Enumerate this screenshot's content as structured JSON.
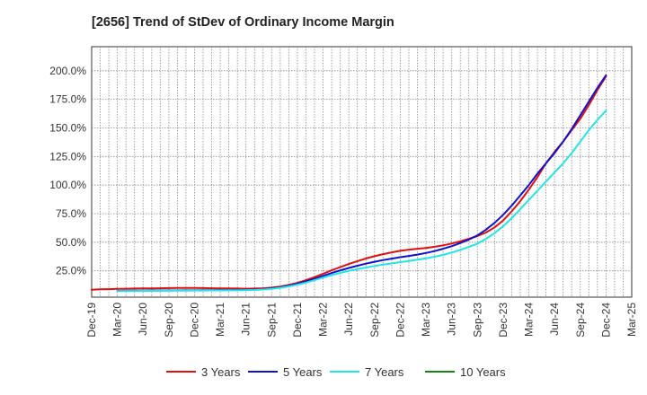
{
  "chart_data": {
    "type": "line",
    "title": "[2656]  Trend of StDev of Ordinary Income Margin",
    "xlabel": "",
    "ylabel": "",
    "x_tick_labels": [
      "Dec-19",
      "Mar-20",
      "Jun-20",
      "Sep-20",
      "Dec-20",
      "Mar-21",
      "Jun-21",
      "Sep-21",
      "Dec-21",
      "Mar-22",
      "Jun-22",
      "Sep-22",
      "Dec-22",
      "Mar-23",
      "Jun-23",
      "Sep-23",
      "Dec-23",
      "Mar-24",
      "Jun-24",
      "Sep-24",
      "Dec-24",
      "Mar-25"
    ],
    "y_ticks": [
      25,
      50,
      75,
      100,
      125,
      150,
      175,
      200
    ],
    "y_tick_labels": [
      "25.0%",
      "50.0%",
      "75.0%",
      "100.0%",
      "125.0%",
      "150.0%",
      "175.0%",
      "200.0%"
    ],
    "ylim": [
      2,
      221
    ],
    "grid": true,
    "legend_position": "bottom",
    "series": [
      {
        "name": "3 Years",
        "color": "#dd1111",
        "x": [
          "Dec-19",
          "Jan-20",
          "Feb-20",
          "Mar-20",
          "Apr-20",
          "May-20",
          "Jun-20",
          "Jul-20",
          "Aug-20",
          "Sep-20",
          "Oct-20",
          "Nov-20",
          "Dec-20",
          "Jan-21",
          "Feb-21",
          "Mar-21",
          "Apr-21",
          "May-21",
          "Jun-21",
          "Jul-21",
          "Aug-21",
          "Sep-21",
          "Oct-21",
          "Nov-21",
          "Dec-21",
          "Jan-22",
          "Feb-22",
          "Mar-22",
          "Apr-22",
          "May-22",
          "Jun-22",
          "Jul-22",
          "Aug-22",
          "Sep-22",
          "Oct-22",
          "Nov-22",
          "Dec-22",
          "Jan-23",
          "Feb-23",
          "Mar-23",
          "Apr-23",
          "May-23",
          "Jun-23",
          "Jul-23",
          "Aug-23",
          "Sep-23",
          "Oct-23",
          "Nov-23",
          "Dec-23",
          "Jan-24",
          "Feb-24",
          "Mar-24",
          "Apr-24",
          "May-24",
          "Jun-24",
          "Jul-24",
          "Aug-24",
          "Sep-24",
          "Oct-24",
          "Nov-24",
          "Dec-24"
        ],
        "values": [
          8.5,
          8.8,
          9.0,
          9.2,
          9.4,
          9.5,
          9.6,
          9.7,
          9.8,
          9.9,
          10.0,
          10.0,
          10.0,
          9.9,
          9.8,
          9.7,
          9.6,
          9.5,
          9.4,
          9.5,
          9.8,
          10.3,
          11.3,
          12.7,
          14.5,
          16.8,
          19.5,
          22.5,
          25.5,
          28.3,
          31.0,
          33.5,
          35.8,
          37.8,
          39.6,
          41.2,
          42.5,
          43.5,
          44.3,
          45.0,
          46.0,
          47.3,
          48.9,
          50.8,
          53.0,
          55.4,
          58.5,
          63.0,
          69.0,
          77.0,
          86.0,
          96.0,
          107.0,
          119.0,
          129.0,
          138.0,
          148.0,
          158.0,
          170.0,
          183.0,
          195.0
        ]
      },
      {
        "name": "5 Years",
        "color": "#1111cc",
        "x": [
          "Mar-20",
          "Apr-20",
          "May-20",
          "Jun-20",
          "Jul-20",
          "Aug-20",
          "Sep-20",
          "Oct-20",
          "Nov-20",
          "Dec-20",
          "Jan-21",
          "Feb-21",
          "Mar-21",
          "Apr-21",
          "May-21",
          "Jun-21",
          "Jul-21",
          "Aug-21",
          "Sep-21",
          "Oct-21",
          "Nov-21",
          "Dec-21",
          "Jan-22",
          "Feb-22",
          "Mar-22",
          "Apr-22",
          "May-22",
          "Jun-22",
          "Jul-22",
          "Aug-22",
          "Sep-22",
          "Oct-22",
          "Nov-22",
          "Dec-22",
          "Jan-23",
          "Feb-23",
          "Mar-23",
          "Apr-23",
          "May-23",
          "Jun-23",
          "Jul-23",
          "Aug-23",
          "Sep-23",
          "Oct-23",
          "Nov-23",
          "Dec-23",
          "Jan-24",
          "Feb-24",
          "Mar-24",
          "Apr-24",
          "May-24",
          "Jun-24",
          "Jul-24",
          "Aug-24",
          "Sep-24",
          "Oct-24",
          "Nov-24",
          "Dec-24"
        ],
        "values": [
          7.5,
          7.6,
          7.7,
          7.7,
          7.8,
          7.8,
          7.9,
          7.9,
          8.0,
          8.0,
          8.1,
          8.1,
          8.2,
          8.2,
          8.3,
          8.3,
          8.5,
          8.9,
          9.6,
          10.6,
          12.0,
          13.7,
          15.7,
          18.0,
          20.6,
          23.1,
          25.4,
          27.5,
          29.5,
          31.3,
          32.9,
          34.4,
          35.7,
          36.9,
          38.0,
          39.2,
          40.6,
          42.3,
          44.3,
          46.6,
          49.3,
          52.3,
          56.0,
          61.0,
          67.0,
          74.0,
          82.0,
          91.0,
          100.0,
          110.0,
          119.0,
          128.0,
          138.0,
          149.0,
          161.0,
          173.0,
          185.0,
          196.0
        ]
      },
      {
        "name": "7 Years",
        "color": "#22e5e5",
        "x": [
          "Mar-20",
          "Apr-20",
          "May-20",
          "Jun-20",
          "Jul-20",
          "Aug-20",
          "Sep-20",
          "Oct-20",
          "Nov-20",
          "Dec-20",
          "Jan-21",
          "Feb-21",
          "Mar-21",
          "Apr-21",
          "May-21",
          "Jun-21",
          "Jul-21",
          "Aug-21",
          "Sep-21",
          "Oct-21",
          "Nov-21",
          "Dec-21",
          "Jan-22",
          "Feb-22",
          "Mar-22",
          "Apr-22",
          "May-22",
          "Jun-22",
          "Jul-22",
          "Aug-22",
          "Sep-22",
          "Oct-22",
          "Nov-22",
          "Dec-22",
          "Jan-23",
          "Feb-23",
          "Mar-23",
          "Apr-23",
          "May-23",
          "Jun-23",
          "Jul-23",
          "Aug-23",
          "Sep-23",
          "Oct-23",
          "Nov-23",
          "Dec-23",
          "Jan-24",
          "Feb-24",
          "Mar-24",
          "Apr-24",
          "May-24",
          "Jun-24",
          "Jul-24",
          "Aug-24",
          "Sep-24",
          "Oct-24",
          "Nov-24",
          "Dec-24"
        ],
        "values": [
          7.3,
          7.4,
          7.4,
          7.5,
          7.5,
          7.6,
          7.6,
          7.7,
          7.7,
          7.8,
          7.8,
          7.9,
          7.9,
          8.0,
          8.0,
          8.1,
          8.3,
          8.7,
          9.3,
          10.2,
          11.4,
          12.9,
          14.7,
          16.8,
          19.1,
          21.3,
          23.2,
          24.9,
          26.5,
          27.9,
          29.2,
          30.4,
          31.5,
          32.6,
          33.6,
          34.7,
          35.9,
          37.3,
          39.0,
          41.0,
          43.3,
          45.9,
          48.8,
          53.0,
          58.0,
          64.0,
          71.0,
          79.0,
          87.0,
          95.0,
          103.0,
          111.0,
          119.0,
          128.0,
          138.0,
          148.0,
          157.0,
          165.0
        ]
      },
      {
        "name": "10 Years",
        "color": "#118811",
        "x": [],
        "values": []
      }
    ]
  }
}
